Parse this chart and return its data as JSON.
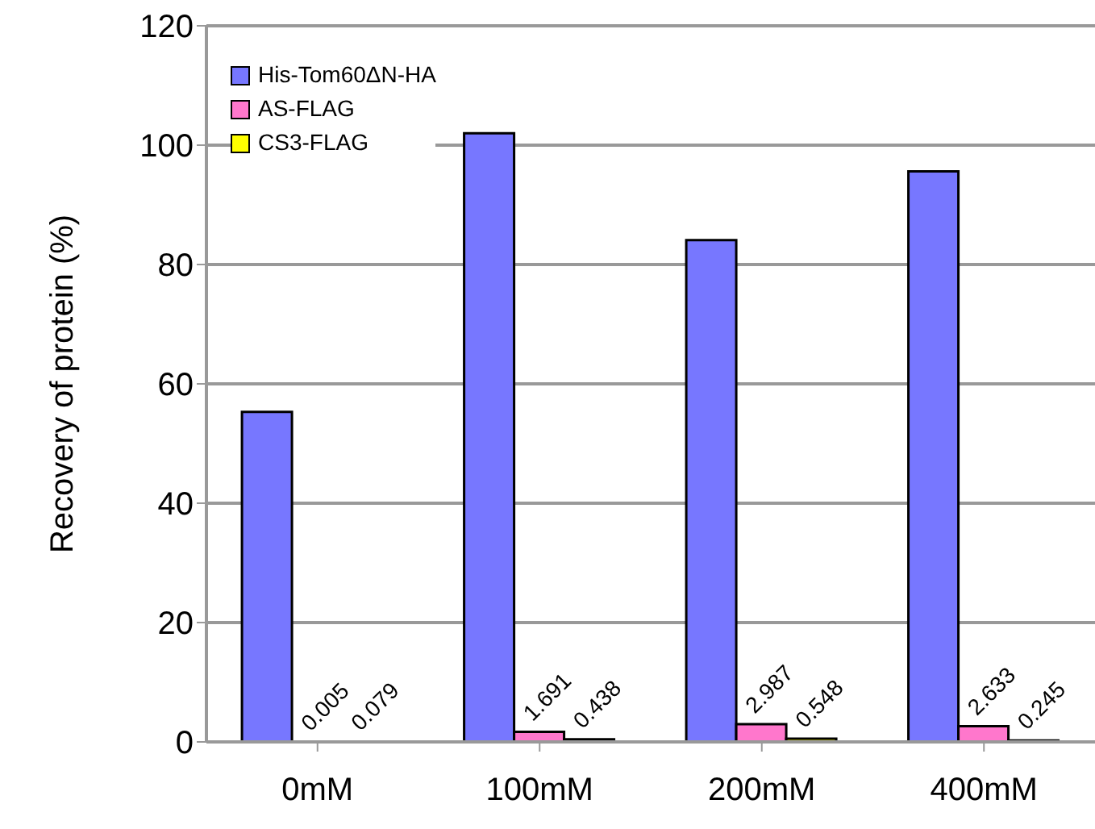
{
  "chart_data": {
    "type": "bar",
    "ylabel": "Recovery of protein (%)",
    "categories": [
      "0mM",
      "100mM",
      "200mM",
      "400mM"
    ],
    "series": [
      {
        "name": "His-Tom60ΔN-HA",
        "color": "#7777ff",
        "values": [
          55.3,
          102,
          84.1,
          95.6
        ]
      },
      {
        "name": "AS-FLAG",
        "color": "#ff77cc",
        "values": [
          0.005,
          1.691,
          2.987,
          2.633
        ],
        "value_labels": [
          "0.005",
          "1.691",
          "2.987",
          "2.633"
        ]
      },
      {
        "name": "CS3-FLAG",
        "color": "#ffff00",
        "values": [
          0.079,
          0.438,
          0.548,
          0.245
        ],
        "value_labels": [
          "0.079",
          "0.438",
          "0.548",
          "0.245"
        ]
      }
    ],
    "ylim": [
      0,
      120
    ],
    "yticks": [
      0,
      20,
      40,
      60,
      80,
      100,
      120
    ],
    "grid": "y",
    "legend": "top left"
  }
}
